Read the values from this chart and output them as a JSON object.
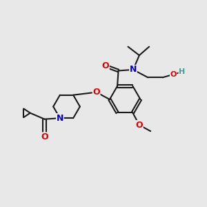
{
  "background_color": "#e8e8e8",
  "bond_color": "#1a1a1a",
  "bond_width": 1.5,
  "atom_colors": {
    "O": "#e00000",
    "N": "#0000cc",
    "H": "#4a9a9a",
    "C": "#1a1a1a"
  },
  "figsize": [
    3.0,
    3.0
  ],
  "dpi": 100,
  "xlim": [
    0,
    10
  ],
  "ylim": [
    0,
    10
  ]
}
